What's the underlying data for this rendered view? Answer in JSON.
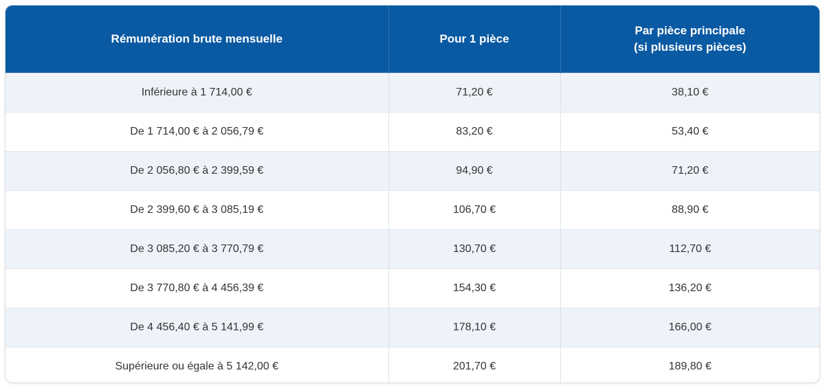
{
  "table": {
    "headers": [
      [
        "Rémunération brute mensuelle"
      ],
      [
        "Pour 1 pièce"
      ],
      [
        "Par pièce principale",
        "(si plusieurs pièces)"
      ]
    ],
    "rows": [
      [
        "Inférieure à 1 714,00 €",
        "71,20 €",
        "38,10 €"
      ],
      [
        "De 1 714,00 € à 2 056,79 €",
        "83,20 €",
        "53,40 €"
      ],
      [
        "De 2 056,80 € à 2 399,59 €",
        "94,90 €",
        "71,20 €"
      ],
      [
        "De 2 399,60 € à 3 085,19 €",
        "106,70 €",
        "88,90 €"
      ],
      [
        "De 3 085,20 € à 3 770,79 €",
        "130,70 €",
        "112,70 €"
      ],
      [
        "De 3 770,80 € à 4 456,39 €",
        "154,30 €",
        "136,20 €"
      ],
      [
        "De 4 456,40 € à 5 141,99 €",
        "178,10 €",
        "166,00 €"
      ],
      [
        "Supérieure ou égale à 5 142,00 €",
        "201,70 €",
        "189,80 €"
      ]
    ]
  },
  "colors": {
    "header_bg": "#0a5aa3",
    "header_text": "#ffffff",
    "row_alt_bg": "#eef3f9",
    "cell_text": "#333333"
  }
}
